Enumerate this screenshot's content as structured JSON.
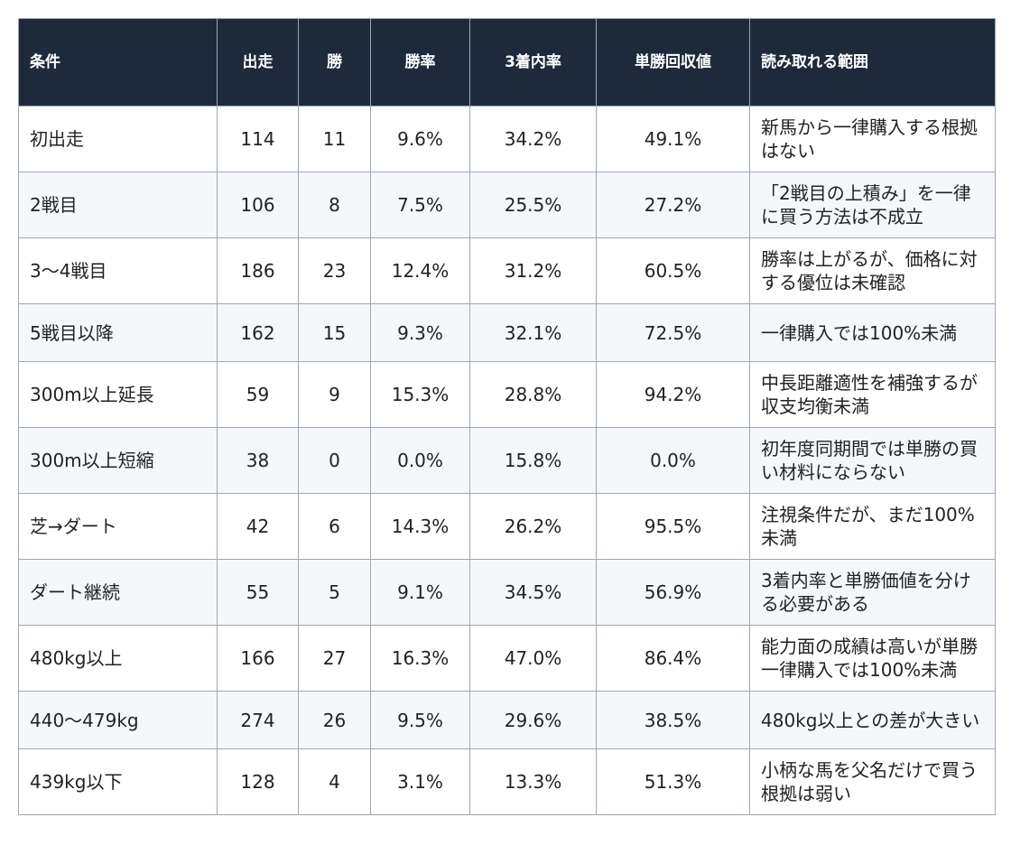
{
  "table": {
    "header": [
      "条件",
      "出走",
      "勝",
      "勝率",
      "3着内率",
      "単勝回収値",
      "読み取れる範囲"
    ],
    "rows": [
      [
        "初出走",
        "114",
        "11",
        "9.6%",
        "34.2%",
        "49.1%",
        "新馬から一律購入する根拠はない"
      ],
      [
        "2戦目",
        "106",
        "8",
        "7.5%",
        "25.5%",
        "27.2%",
        "「2戦目の上積み」を一律に買う方法は不成立"
      ],
      [
        "3〜4戦目",
        "186",
        "23",
        "12.4%",
        "31.2%",
        "60.5%",
        "勝率は上がるが、価格に対する優位は未確認"
      ],
      [
        "5戦目以降",
        "162",
        "15",
        "9.3%",
        "32.1%",
        "72.5%",
        "一律購入では100%未満"
      ],
      [
        "300m以上延長",
        "59",
        "9",
        "15.3%",
        "28.8%",
        "94.2%",
        "中長距離適性を補強するが収支均衡未満"
      ],
      [
        "300m以上短縮",
        "38",
        "0",
        "0.0%",
        "15.8%",
        "0.0%",
        "初年度同期間では単勝の買い材料にならない"
      ],
      [
        "芝→ダート",
        "42",
        "6",
        "14.3%",
        "26.2%",
        "95.5%",
        "注視条件だが、まだ100%未満"
      ],
      [
        "ダート継続",
        "55",
        "5",
        "9.1%",
        "34.5%",
        "56.9%",
        "3着内率と単勝価値を分ける必要がある"
      ],
      [
        "480kg以上",
        "166",
        "27",
        "16.3%",
        "47.0%",
        "86.4%",
        "能力面の成績は高いが単勝一律購入では100%未満"
      ],
      [
        "440〜479kg",
        "274",
        "26",
        "9.5%",
        "29.6%",
        "38.5%",
        "480kg以上との差が大きい"
      ],
      [
        "439kg以下",
        "128",
        "4",
        "3.1%",
        "13.3%",
        "51.3%",
        "小柄な馬を父名だけで買う根拠は弱い"
      ]
    ]
  }
}
